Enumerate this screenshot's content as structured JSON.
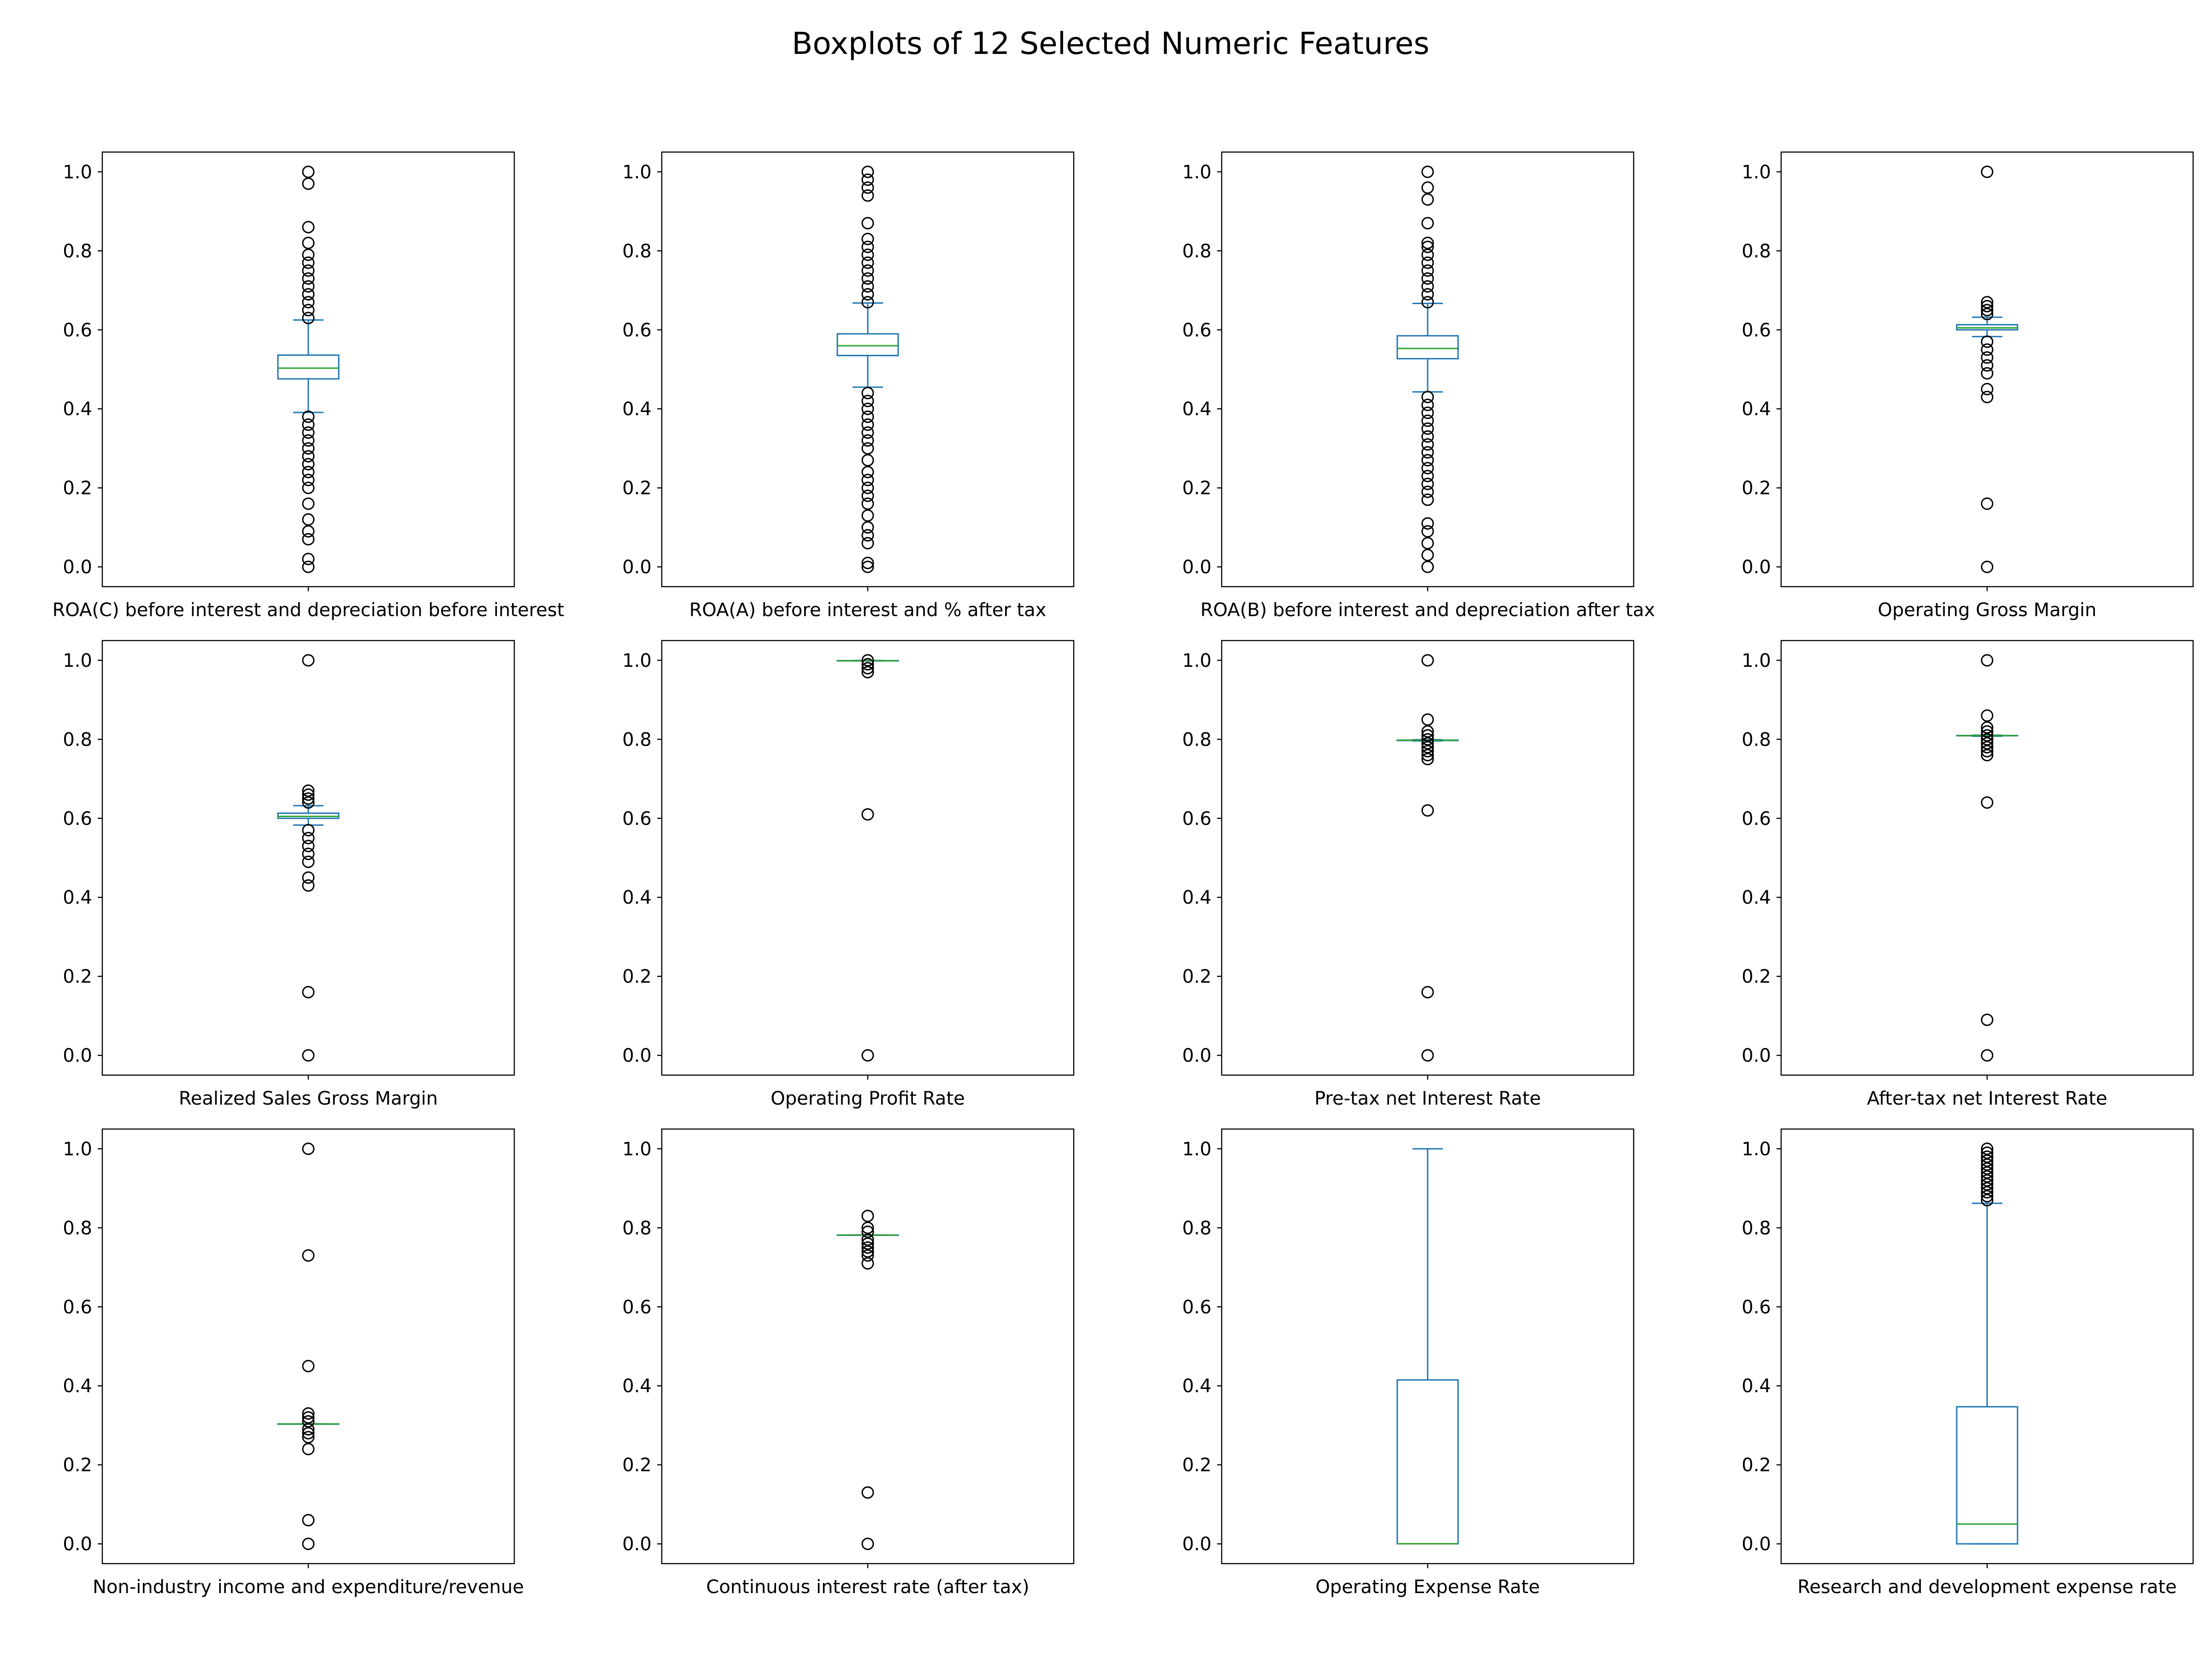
{
  "figure": {
    "title": "Boxplots of 12 Selected Numeric Features",
    "colors": {
      "box": "#1f77b4",
      "median": "#2ca02c",
      "flier": "#000000",
      "frame": "#000000",
      "text": "#000000"
    }
  },
  "chart_data": [
    {
      "type": "box",
      "xlabel": "ROA(C) before interest and depreciation before interest",
      "yticks": [
        "0.0",
        "0.2",
        "0.4",
        "0.6",
        "0.8",
        "1.0"
      ],
      "ylim": [
        -0.05,
        1.05
      ],
      "q1": 0.476,
      "median": 0.503,
      "q3": 0.536,
      "whisker_low": 0.391,
      "whisker_high": 0.625,
      "fliers": [
        0.0,
        0.02,
        0.07,
        0.09,
        0.12,
        0.16,
        0.2,
        0.22,
        0.24,
        0.26,
        0.28,
        0.3,
        0.32,
        0.34,
        0.36,
        0.38,
        0.63,
        0.65,
        0.67,
        0.69,
        0.71,
        0.73,
        0.75,
        0.77,
        0.79,
        0.82,
        0.86,
        0.97,
        1.0
      ]
    },
    {
      "type": "box",
      "xlabel": "ROA(A) before interest and % after tax",
      "yticks": [
        "0.0",
        "0.2",
        "0.4",
        "0.6",
        "0.8",
        "1.0"
      ],
      "ylim": [
        -0.05,
        1.05
      ],
      "q1": 0.535,
      "median": 0.56,
      "q3": 0.59,
      "whisker_low": 0.455,
      "whisker_high": 0.668,
      "fliers": [
        0.0,
        0.01,
        0.06,
        0.08,
        0.1,
        0.13,
        0.16,
        0.18,
        0.2,
        0.22,
        0.24,
        0.27,
        0.3,
        0.32,
        0.34,
        0.36,
        0.38,
        0.4,
        0.42,
        0.44,
        0.67,
        0.69,
        0.71,
        0.73,
        0.75,
        0.77,
        0.79,
        0.81,
        0.83,
        0.87,
        0.94,
        0.96,
        0.98,
        1.0
      ]
    },
    {
      "type": "box",
      "xlabel": "ROA(B) before interest and depreciation after tax",
      "yticks": [
        "0.0",
        "0.2",
        "0.4",
        "0.6",
        "0.8",
        "1.0"
      ],
      "ylim": [
        -0.05,
        1.05
      ],
      "q1": 0.527,
      "median": 0.553,
      "q3": 0.585,
      "whisker_low": 0.443,
      "whisker_high": 0.667,
      "fliers": [
        0.0,
        0.03,
        0.06,
        0.09,
        0.11,
        0.17,
        0.19,
        0.21,
        0.23,
        0.25,
        0.27,
        0.29,
        0.31,
        0.33,
        0.35,
        0.37,
        0.39,
        0.41,
        0.43,
        0.67,
        0.69,
        0.71,
        0.73,
        0.75,
        0.77,
        0.79,
        0.81,
        0.82,
        0.87,
        0.93,
        0.96,
        1.0
      ]
    },
    {
      "type": "box",
      "xlabel": "Operating Gross Margin",
      "yticks": [
        "0.0",
        "0.2",
        "0.4",
        "0.6",
        "0.8",
        "1.0"
      ],
      "ylim": [
        -0.05,
        1.05
      ],
      "q1": 0.6,
      "median": 0.605,
      "q3": 0.613,
      "whisker_low": 0.583,
      "whisker_high": 0.632,
      "fliers": [
        0.0,
        0.16,
        0.43,
        0.45,
        0.49,
        0.51,
        0.53,
        0.55,
        0.57,
        0.64,
        0.65,
        0.66,
        0.67,
        1.0
      ]
    },
    {
      "type": "box",
      "xlabel": "Realized Sales Gross Margin",
      "yticks": [
        "0.0",
        "0.2",
        "0.4",
        "0.6",
        "0.8",
        "1.0"
      ],
      "ylim": [
        -0.05,
        1.05
      ],
      "q1": 0.6,
      "median": 0.605,
      "q3": 0.613,
      "whisker_low": 0.583,
      "whisker_high": 0.632,
      "fliers": [
        0.0,
        0.16,
        0.43,
        0.45,
        0.49,
        0.51,
        0.53,
        0.55,
        0.57,
        0.64,
        0.65,
        0.66,
        0.67,
        1.0
      ]
    },
    {
      "type": "box",
      "xlabel": "Operating Profit Rate",
      "yticks": [
        "0.0",
        "0.2",
        "0.4",
        "0.6",
        "0.8",
        "1.0"
      ],
      "ylim": [
        -0.05,
        1.05
      ],
      "q1": 0.9989,
      "median": 0.9991,
      "q3": 0.9992,
      "whisker_low": 0.9986,
      "whisker_high": 0.9995,
      "fliers": [
        0.0,
        0.61,
        0.97,
        0.98,
        0.99,
        1.0
      ]
    },
    {
      "type": "box",
      "xlabel": "Pre-tax net Interest Rate",
      "yticks": [
        "0.0",
        "0.2",
        "0.4",
        "0.6",
        "0.8",
        "1.0"
      ],
      "ylim": [
        -0.05,
        1.05
      ],
      "q1": 0.797,
      "median": 0.7975,
      "q3": 0.798,
      "whisker_low": 0.796,
      "whisker_high": 0.799,
      "fliers": [
        0.0,
        0.16,
        0.62,
        0.75,
        0.76,
        0.77,
        0.78,
        0.79,
        0.8,
        0.81,
        0.82,
        0.85,
        1.0
      ]
    },
    {
      "type": "box",
      "xlabel": "After-tax net Interest Rate",
      "yticks": [
        "0.0",
        "0.2",
        "0.4",
        "0.6",
        "0.8",
        "1.0"
      ],
      "ylim": [
        -0.05,
        1.05
      ],
      "q1": 0.809,
      "median": 0.8093,
      "q3": 0.8096,
      "whisker_low": 0.808,
      "whisker_high": 0.8105,
      "fliers": [
        0.0,
        0.09,
        0.64,
        0.76,
        0.77,
        0.78,
        0.79,
        0.8,
        0.81,
        0.82,
        0.83,
        0.86,
        1.0
      ]
    },
    {
      "type": "box",
      "xlabel": "Non-industry income and expenditure/revenue",
      "yticks": [
        "0.0",
        "0.2",
        "0.4",
        "0.6",
        "0.8",
        "1.0"
      ],
      "ylim": [
        -0.05,
        1.05
      ],
      "q1": 0.3034,
      "median": 0.3035,
      "q3": 0.3036,
      "whisker_low": 0.3032,
      "whisker_high": 0.3038,
      "fliers": [
        0.0,
        0.06,
        0.24,
        0.27,
        0.28,
        0.29,
        0.31,
        0.32,
        0.33,
        0.45,
        0.73,
        1.0
      ]
    },
    {
      "type": "box",
      "xlabel": "Continuous interest rate (after tax)",
      "yticks": [
        "0.0",
        "0.2",
        "0.4",
        "0.6",
        "0.8",
        "1.0"
      ],
      "ylim": [
        -0.05,
        1.05
      ],
      "q1": 0.7815,
      "median": 0.7816,
      "q3": 0.7817,
      "whisker_low": 0.7812,
      "whisker_high": 0.782,
      "fliers": [
        0.0,
        0.13,
        0.71,
        0.73,
        0.74,
        0.75,
        0.76,
        0.77,
        0.79,
        0.8,
        0.83
      ]
    },
    {
      "type": "box",
      "xlabel": "Operating Expense Rate",
      "yticks": [
        "0.0",
        "0.2",
        "0.4",
        "0.6",
        "0.8",
        "1.0"
      ],
      "ylim": [
        -0.05,
        1.05
      ],
      "q1": 0.0002,
      "median": 0.0003,
      "q3": 0.415,
      "whisker_low": 0.0001,
      "whisker_high": 1.0,
      "fliers": []
    },
    {
      "type": "box",
      "xlabel": "Research and development expense rate",
      "yticks": [
        "0.0",
        "0.2",
        "0.4",
        "0.6",
        "0.8",
        "1.0"
      ],
      "ylim": [
        -0.05,
        1.05
      ],
      "q1": 0.0,
      "median": 0.05,
      "q3": 0.347,
      "whisker_low": 0.0,
      "whisker_high": 0.862,
      "fliers": [
        0.87,
        0.88,
        0.89,
        0.9,
        0.91,
        0.92,
        0.93,
        0.94,
        0.95,
        0.96,
        0.97,
        0.98,
        0.99,
        1.0
      ]
    }
  ]
}
